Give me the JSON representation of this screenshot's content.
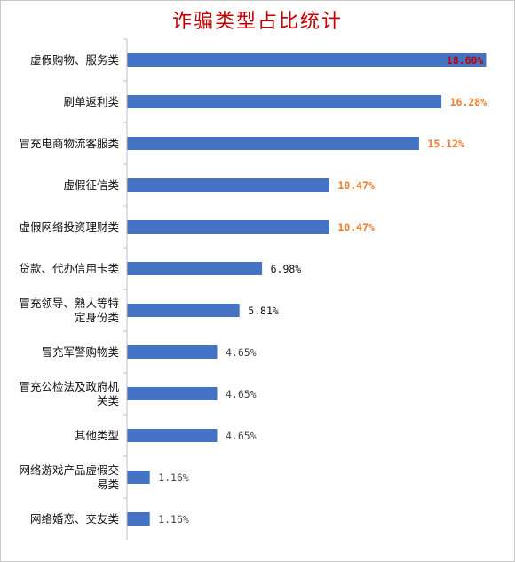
{
  "chart_data": {
    "type": "bar",
    "orientation": "horizontal",
    "title": "诈骗类型占比统计",
    "title_color": "#c00000",
    "bar_color": "#4472c4",
    "categories": [
      [
        "虚假购物、服务类"
      ],
      [
        "刷单返利类"
      ],
      [
        "冒充电商物流客服类"
      ],
      [
        "虚假征信类"
      ],
      [
        "虚假网络投资理财类"
      ],
      [
        "贷款、代办信用卡类"
      ],
      [
        "冒充领导、熟人等特",
        "定身份类"
      ],
      [
        "冒充军警购物类"
      ],
      [
        "冒充公检法及政府机",
        "关类"
      ],
      [
        "其他类型"
      ],
      [
        "网络游戏产品虚假交",
        "易类"
      ],
      [
        "网络婚恋、交友类"
      ]
    ],
    "values": [
      18.6,
      16.28,
      15.12,
      10.47,
      10.47,
      6.98,
      5.81,
      4.65,
      4.65,
      4.65,
      1.16,
      1.16
    ],
    "data_labels": [
      "18.60%",
      "16.28%",
      "15.12%",
      "10.47%",
      "10.47%",
      "6.98%",
      "5.81%",
      "4.65%",
      "4.65%",
      "4.65%",
      "1.16%",
      "1.16%"
    ],
    "label_colors": [
      "#c00000",
      "#ed7d31",
      "#ed7d31",
      "#ed7d31",
      "#ed7d31",
      "#111111",
      "#111111",
      "#444444",
      "#444444",
      "#444444",
      "#444444",
      "#444444"
    ],
    "xlim": [
      0,
      18.6
    ],
    "grid": false,
    "legend": "none"
  }
}
